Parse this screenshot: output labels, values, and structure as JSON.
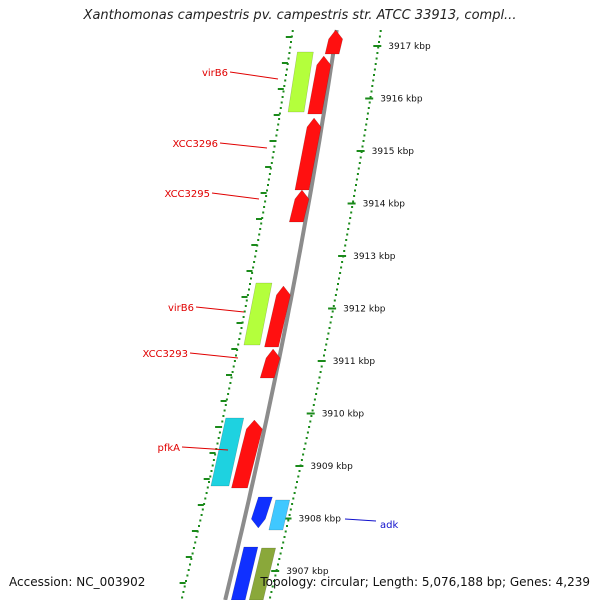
{
  "title": "Xanthomonas campestris pv. campestris str. ATCC 33913, compl...",
  "accession": "Accession: NC_003902",
  "topology": "Topology: circular; Length: 5,076,188 bp; Genes: 4,239",
  "ticks": [
    "3917 kbp",
    "3916 kbp",
    "3915 kbp",
    "3914 kbp",
    "3913 kbp",
    "3912 kbp",
    "3911 kbp",
    "3910 kbp",
    "3909 kbp",
    "3908 kbp",
    "3907 kbp"
  ],
  "gene_labels": [
    "virB6",
    "XCC3296",
    "XCC3295",
    "virB6",
    "XCC3293",
    "pfkA",
    "adk"
  ],
  "colors": {
    "red": "#ff1010",
    "lime": "#b4ff3c",
    "cyan": "#1ed2e0",
    "blue": "#1030ff",
    "sky": "#40c8ff",
    "olive": "#8aa83a",
    "label_red": "#e00000",
    "label_blue": "#1010cc",
    "dots": "#1a8a1a",
    "backbone": "#8c8c8c"
  }
}
